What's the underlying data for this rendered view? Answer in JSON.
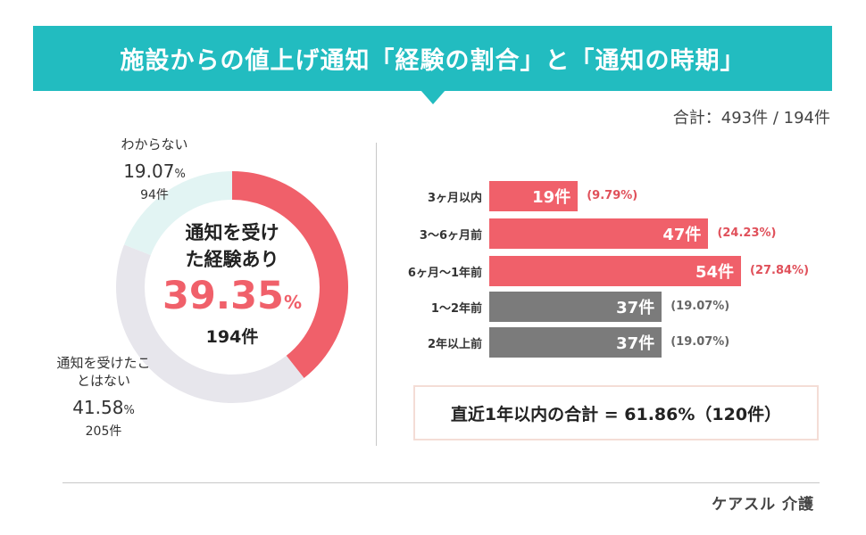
{
  "header": {
    "title": "施設からの値上げ通知「経験の割合」と「通知の時期」"
  },
  "total_label": "合計：493件 / 194件",
  "chart_data": [
    {
      "type": "pie",
      "slices": [
        {
          "label": "通知を受けた経験あり",
          "percent": 39.35,
          "percent_text": "39.35",
          "count": 194,
          "count_text": "194件",
          "color": "#f0606a"
        },
        {
          "label": "通知を受けたことはない",
          "percent": 41.58,
          "percent_text": "41.58",
          "count": 205,
          "count_text": "205件",
          "color": "#e7e6ec"
        },
        {
          "label": "わからない",
          "percent": 19.07,
          "percent_text": "19.07",
          "count": 94,
          "count_text": "94件",
          "color": "#e2f4f3"
        }
      ],
      "unit": "%"
    },
    {
      "type": "bar",
      "orientation": "horizontal",
      "categories": [
        "3ヶ月以内",
        "3〜6ヶ月前",
        "6ヶ月〜1年前",
        "1〜2年前",
        "2年以上前"
      ],
      "values": [
        19,
        47,
        54,
        37,
        37
      ],
      "value_labels": [
        "19件",
        "47件",
        "54件",
        "37件",
        "37件"
      ],
      "percent_labels": [
        "(9.79%)",
        "(24.23%)",
        "(27.84%)",
        "(19.07%)",
        "(19.07%)"
      ],
      "colors": [
        "#f0606a",
        "#f0606a",
        "#f0606a",
        "#7b7b7b",
        "#7b7b7b"
      ],
      "percent_colors": [
        "#e0505a",
        "#e0505a",
        "#e0505a",
        "#666666",
        "#666666"
      ]
    }
  ],
  "summary": {
    "text": "直近1年以内の合計 = 61.86%（120件）"
  },
  "brand": {
    "name": "ケアスル 介護"
  }
}
